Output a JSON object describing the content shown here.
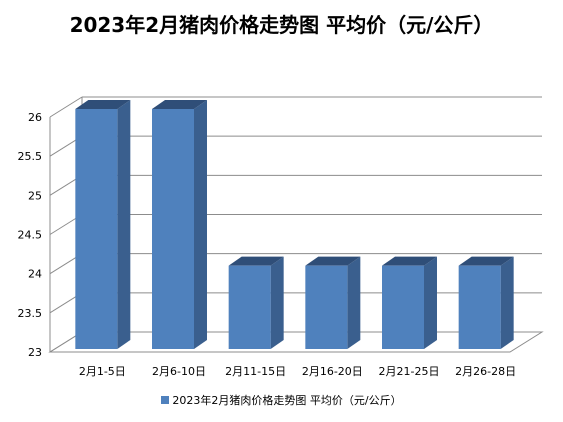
{
  "chart_data": {
    "type": "bar",
    "title": "2023年2月猪肉价格走势图 平均价（元/公斤）",
    "categories": [
      "2月1-5日",
      "2月6-10日",
      "2月11-15日",
      "2月16-20日",
      "2月21-25日",
      "2月26-28日"
    ],
    "series": [
      {
        "name": "2023年2月猪肉价格走势图  平均价（元/公斤）",
        "values": [
          26,
          26,
          24,
          24,
          24,
          24
        ]
      }
    ],
    "y_ticks": [
      "23",
      "23.5",
      "24",
      "24.5",
      "25",
      "25.5",
      "26"
    ],
    "ylim": [
      23,
      26
    ],
    "grid": true,
    "legend_position": "bottom",
    "three_d": true
  },
  "colors": {
    "bar_front": "#4F81BD",
    "bar_side": "#3A5F8E",
    "bar_top": "#2F4E78",
    "grid": "#8C8C8C",
    "axis_text": "#000000"
  }
}
